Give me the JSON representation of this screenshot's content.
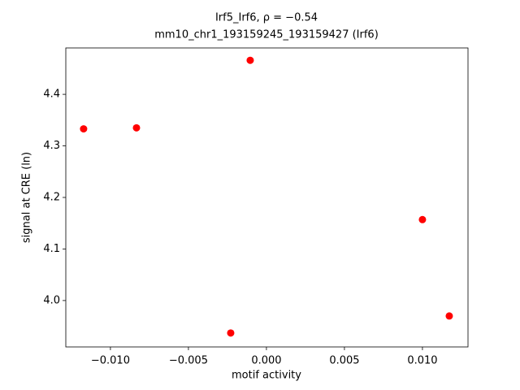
{
  "chart_data": {
    "type": "scatter",
    "title": [
      "Irf5_Irf6, ρ = −0.54",
      "mm10_chr1_193159245_193159427 (Irf6)"
    ],
    "xlabel": "motif activity",
    "ylabel": "signal at CRE (ln)",
    "x": [
      -0.01172,
      -0.00833,
      -0.00104,
      -0.00229,
      0.01,
      0.01172
    ],
    "values": [
      4.333,
      4.335,
      4.466,
      3.937,
      4.157,
      3.97
    ],
    "color": "#ff0000",
    "xlim": [
      -0.01286,
      0.01292
    ],
    "ylim": [
      3.91,
      4.49
    ],
    "xticks": [
      {
        "value": -0.01,
        "label": "−0.010"
      },
      {
        "value": -0.005,
        "label": "−0.005"
      },
      {
        "value": 0,
        "label": "0.000"
      },
      0.005,
      {
        "value": 0.01,
        "label": "0.010"
      }
    ],
    "yticks": [
      {
        "value": 4.0,
        "label": "4.0"
      },
      4.1,
      4.2,
      4.3,
      4.4
    ]
  }
}
